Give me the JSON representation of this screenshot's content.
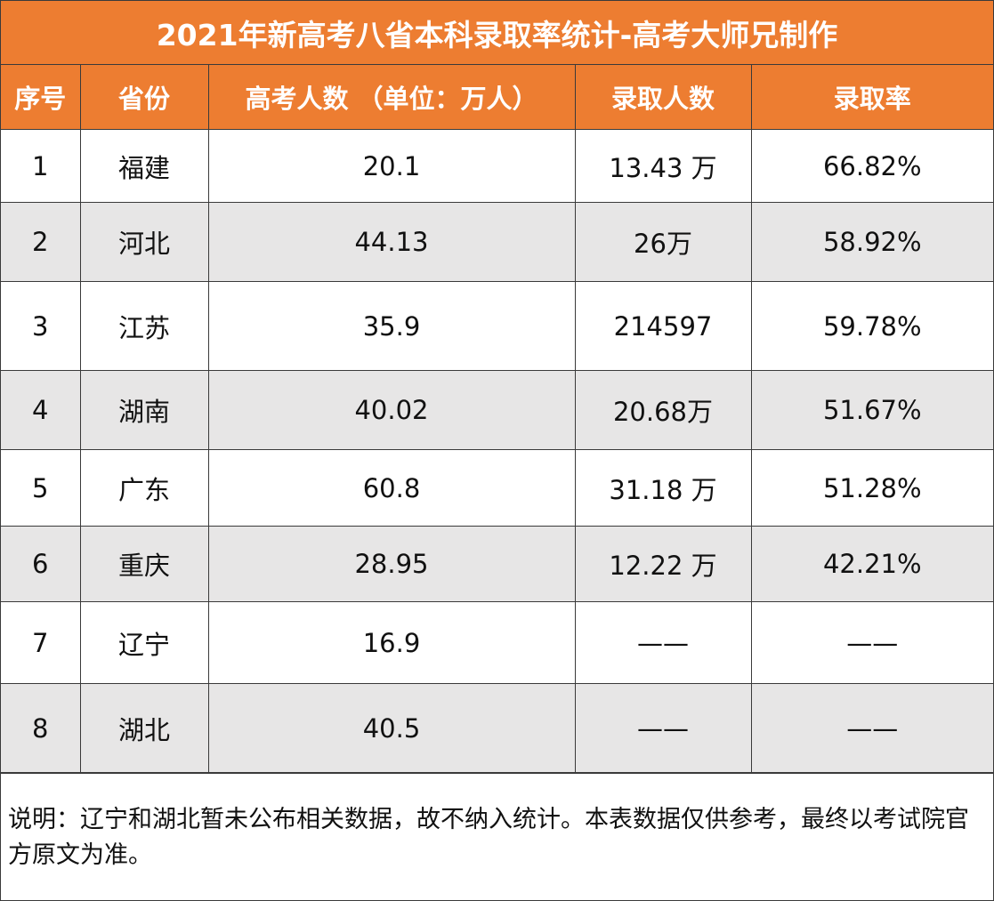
{
  "title": "2021年新高考八省本科录取率统计-高考大师兄制作",
  "columns": [
    "序号",
    "省份",
    "高考人数 （单位：万人）",
    "录取人数",
    "录取率"
  ],
  "rows": [
    {
      "no": "1",
      "province": "福建",
      "examinees": "20.1",
      "admitted": "13.43 万",
      "rate": "66.82%"
    },
    {
      "no": "2",
      "province": "河北",
      "examinees": "44.13",
      "admitted": "26万",
      "rate": "58.92%"
    },
    {
      "no": "3",
      "province": "江苏",
      "examinees": "35.9",
      "admitted": "214597",
      "rate": "59.78%"
    },
    {
      "no": "4",
      "province": "湖南",
      "examinees": "40.02",
      "admitted": "20.68万",
      "rate": "51.67%"
    },
    {
      "no": "5",
      "province": "广东",
      "examinees": "60.8",
      "admitted": "31.18 万",
      "rate": "51.28%"
    },
    {
      "no": "6",
      "province": "重庆",
      "examinees": "28.95",
      "admitted": "12.22 万",
      "rate": "42.21%"
    },
    {
      "no": "7",
      "province": "辽宁",
      "examinees": "16.9",
      "admitted": "——",
      "rate": "——"
    },
    {
      "no": "8",
      "province": "湖北",
      "examinees": "40.5",
      "admitted": "——",
      "rate": "——"
    }
  ],
  "note": "说明：辽宁和湖北暂未公布相关数据，故不纳入统计。本表数据仅供参考，最终以考试院官方原文为准。",
  "colors": {
    "header_bg": "#ED7D31",
    "header_text": "#FFFFFF",
    "shaded_row": "#E7E6E6",
    "border": "#3A3A3A"
  }
}
